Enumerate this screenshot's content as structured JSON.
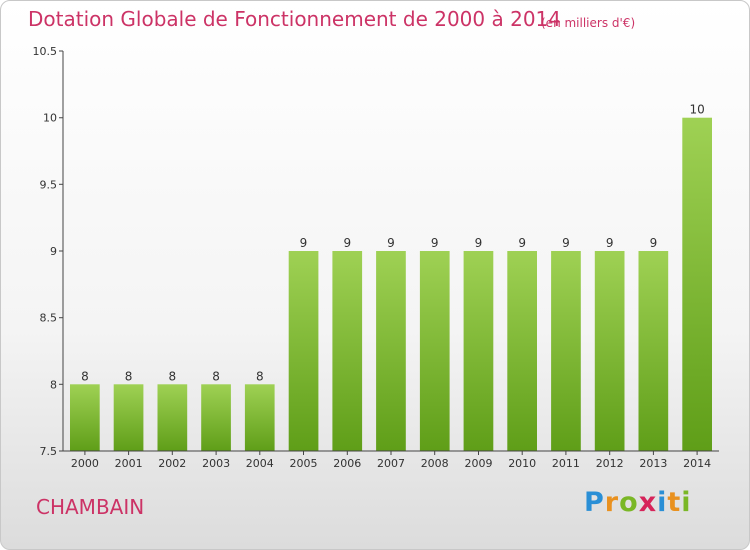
{
  "header": {
    "title": "Dotation Globale de Fonctionnement de 2000 à 2014",
    "unit": "(en milliers d'€)"
  },
  "footer": {
    "commune": "CHAMBAIN",
    "brand_letters": [
      "P",
      "r",
      "o",
      "x",
      "i",
      "t",
      "i"
    ],
    "brand_colors": [
      "#2a8fd6",
      "#e9911f",
      "#7ab726",
      "#d6245a",
      "#2a8fd6",
      "#e9911f",
      "#7ab726"
    ]
  },
  "colors": {
    "title": "#cc3366",
    "bar_top": "#9fd154",
    "bar_bottom": "#5f9e18",
    "axis": "#444444",
    "grid_tick": "#444444"
  },
  "chart_data": {
    "type": "bar",
    "categories": [
      "2000",
      "2001",
      "2002",
      "2003",
      "2004",
      "2005",
      "2006",
      "2007",
      "2008",
      "2009",
      "2010",
      "2011",
      "2012",
      "2013",
      "2014"
    ],
    "values": [
      8,
      8,
      8,
      8,
      8,
      9,
      9,
      9,
      9,
      9,
      9,
      9,
      9,
      9,
      10
    ],
    "labels": [
      "8",
      "8",
      "8",
      "8",
      "8",
      "9",
      "9",
      "9",
      "9",
      "9",
      "9",
      "9",
      "9",
      "9",
      "10"
    ],
    "ylim": [
      7.5,
      10.5
    ],
    "yticks": [
      7.5,
      8,
      8.5,
      9,
      9.5,
      10,
      10.5
    ],
    "ytick_labels": [
      "7.5",
      "8",
      "8.5",
      "9",
      "9.5",
      "10",
      "10.5"
    ],
    "title": "Dotation Globale de Fonctionnement de 2000 à 2014",
    "xlabel": "",
    "ylabel": "",
    "grid": false
  }
}
